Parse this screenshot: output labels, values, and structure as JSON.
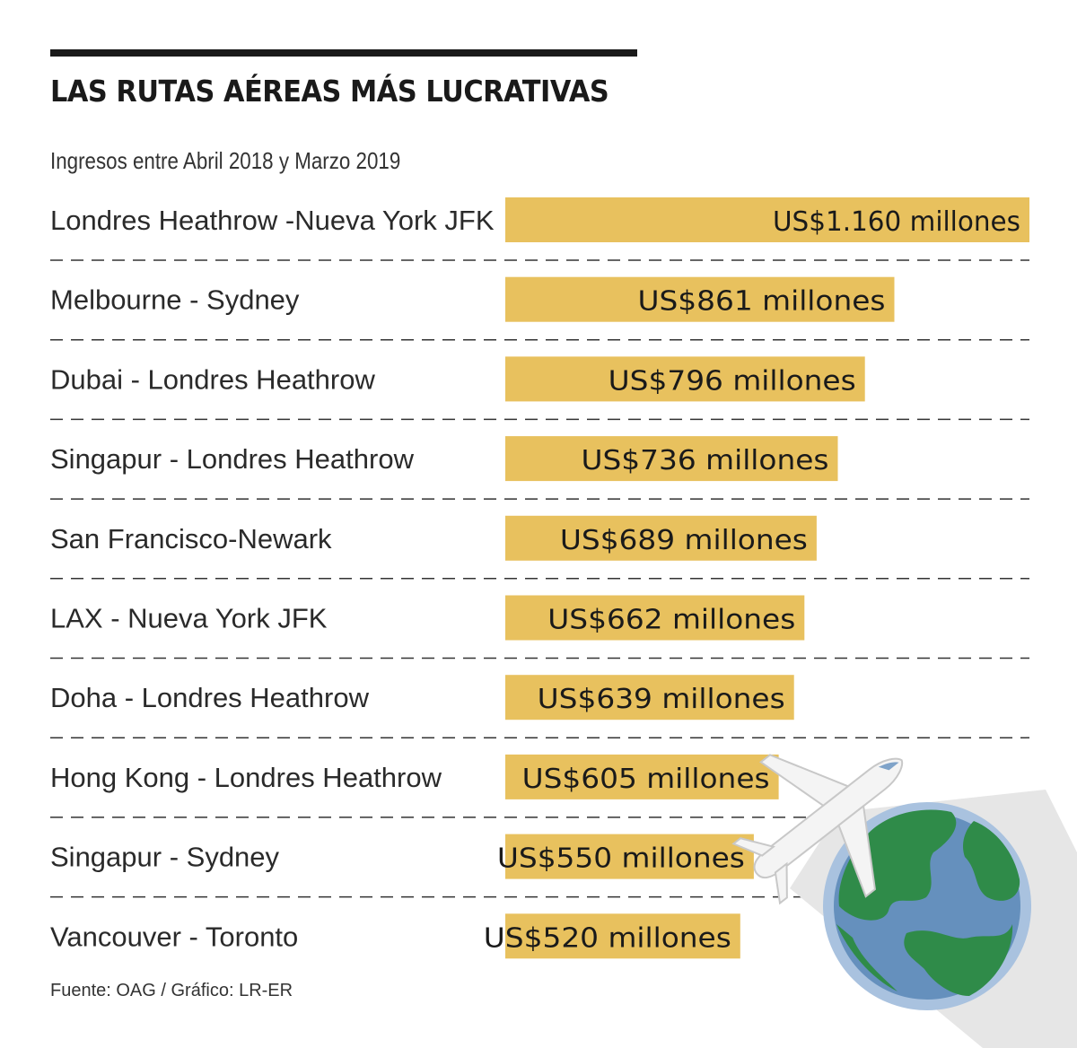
{
  "title": "LAS RUTAS AÉREAS MÁS LUCRATIVAS",
  "subtitle": "Ingresos entre Abril 2018 y Marzo 2019",
  "source": "Fuente: OAG / Gráfico: LR-ER",
  "colors": {
    "bar": "#e8c15e",
    "text": "#1a1a1a",
    "divider": "#333333",
    "globe_ocean": "#6590bd",
    "globe_land": "#2f8b49",
    "shadow": "#e6e6e6"
  },
  "chart_data": {
    "type": "bar",
    "orientation": "horizontal",
    "categories": [
      "Londres Heathrow -Nueva York JFK",
      "Melbourne - Sydney",
      "Dubai - Londres Heathrow",
      "Singapur - Londres Heathrow",
      "San Francisco-Newark",
      "LAX - Nueva York JFK",
      "Doha - Londres Heathrow",
      "Hong Kong - Londres Heathrow",
      "Singapur - Sydney",
      "Vancouver - Toronto"
    ],
    "values": [
      1160,
      861,
      796,
      736,
      689,
      662,
      639,
      605,
      550,
      520
    ],
    "value_labels": [
      "US$1.160 millones",
      "US$861 millones",
      "US$796 millones",
      "US$736 millones",
      "US$689 millones",
      "US$662 millones",
      "US$639 millones",
      "US$605 millones",
      "US$550 millones",
      "US$520 millones"
    ],
    "unit": "millones de US$",
    "xlim": [
      0,
      1160
    ],
    "grid": false,
    "legend": "none"
  }
}
